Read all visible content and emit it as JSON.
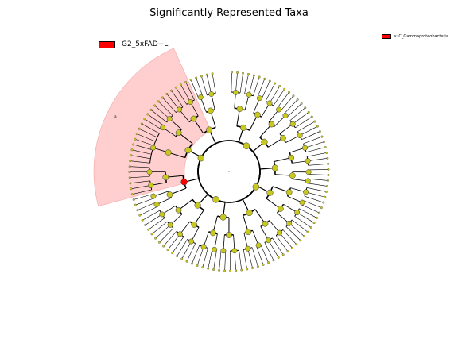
{
  "chart_data": {
    "type": "cladogram",
    "title": "Significantly Represented Taxa",
    "legend_main": {
      "label": "G2_5xFAD+L",
      "color": "#ff0000"
    },
    "legend_clade": {
      "label": "a: C_Gammaproteobacteria",
      "color": "#ff0000"
    },
    "highlighted_clade": {
      "marker": "a",
      "group": "G2_5xFAD+L",
      "shade": "#ffcccc"
    },
    "node_color": "#c8c81e",
    "sig_node_color": "#ff0000",
    "sectors": [
      {
        "name": "s01",
        "leaves": 6,
        "fans": [
          3,
          3
        ]
      },
      {
        "name": "s02",
        "leaves": 5,
        "fans": [
          2,
          3
        ]
      },
      {
        "name": "s03",
        "leaves": 4,
        "fans": [
          2,
          2
        ]
      },
      {
        "name": "s04",
        "leaves": 6,
        "fans": [
          3,
          3
        ]
      },
      {
        "name": "s05",
        "leaves": 6,
        "fans": [
          3,
          3
        ]
      },
      {
        "name": "s06",
        "leaves": 4,
        "fans": [
          2,
          2
        ]
      },
      {
        "name": "s07",
        "leaves": 5,
        "fans": [
          3,
          2
        ]
      },
      {
        "name": "s08",
        "leaves": 6,
        "fans": [
          3,
          3
        ]
      },
      {
        "name": "s09",
        "leaves": 6,
        "fans": [
          3,
          3
        ]
      },
      {
        "name": "s10",
        "leaves": 5,
        "fans": [
          2,
          3
        ]
      },
      {
        "name": "s11",
        "leaves": 5,
        "fans": [
          3,
          2
        ]
      },
      {
        "name": "s12",
        "leaves": 5,
        "fans": [
          2,
          3
        ]
      },
      {
        "name": "s13",
        "leaves": 6,
        "fans": [
          3,
          3
        ]
      },
      {
        "name": "s14",
        "leaves": 6,
        "fans": [
          3,
          3
        ]
      },
      {
        "name": "s15",
        "leaves": 4,
        "fans": [
          2,
          2
        ]
      },
      {
        "name": "s16",
        "leaves": 6,
        "fans": [
          3,
          3
        ],
        "highlighted": true
      },
      {
        "name": "s17",
        "leaves": 8,
        "fans": [
          8
        ],
        "highlighted": true
      },
      {
        "name": "s18",
        "leaves": 5,
        "fans": [
          2,
          3
        ],
        "highlighted": true
      },
      {
        "name": "s19",
        "leaves": 6,
        "fans": [
          3,
          3
        ],
        "highlighted": true
      },
      {
        "name": "s20",
        "leaves": 5,
        "fans": [
          2,
          3
        ]
      }
    ]
  }
}
